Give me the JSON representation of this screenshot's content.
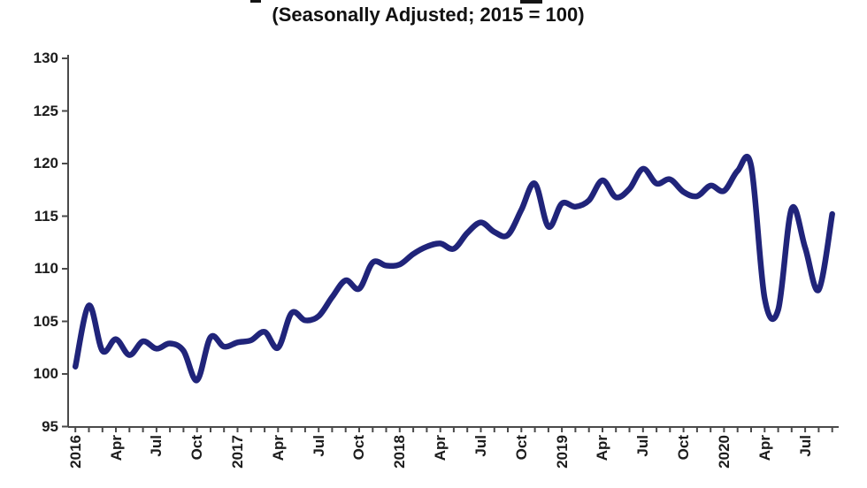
{
  "title": "(Seasonally Adjusted; 2015 = 100)",
  "colors": {
    "line": "#20247a",
    "axis": "#4a4a4a",
    "tick_label": "#1c1c1c",
    "background": "#ffffff"
  },
  "chart_data": {
    "type": "line",
    "title": "(Seasonally Adjusted; 2015 = 100)",
    "x_frequency": "monthly",
    "x_start": "2016-01",
    "x_end": "2020-09",
    "x_tick_labels": [
      "2016",
      "Apr",
      "Jul",
      "Oct",
      "2017",
      "Apr",
      "Jul",
      "Oct",
      "2018",
      "Apr",
      "Jul",
      "Oct",
      "2019",
      "Apr",
      "Jul",
      "Oct",
      "2020",
      "Apr",
      "Jul"
    ],
    "x_tick_label_every_n_months": 3,
    "y_ticks": [
      95,
      100,
      105,
      110,
      115,
      120,
      125,
      130
    ],
    "ylim": [
      95,
      130
    ],
    "grid": false,
    "legend": false,
    "line_smoothing": true,
    "values": [
      100.7,
      106.5,
      102.2,
      103.3,
      101.8,
      103.1,
      102.4,
      102.9,
      102.2,
      99.4,
      103.5,
      102.6,
      103.0,
      103.2,
      104.0,
      102.5,
      105.8,
      105.1,
      105.5,
      107.3,
      108.9,
      108.1,
      110.6,
      110.3,
      110.4,
      111.4,
      112.1,
      112.4,
      111.9,
      113.4,
      114.4,
      113.5,
      113.2,
      115.6,
      118.1,
      114.0,
      116.2,
      115.9,
      116.5,
      118.4,
      116.8,
      117.6,
      119.5,
      118.1,
      118.5,
      117.3,
      116.9,
      117.9,
      117.4,
      119.3,
      119.8,
      107.2,
      106.1,
      115.7,
      112.0,
      108.0,
      115.2
    ]
  }
}
